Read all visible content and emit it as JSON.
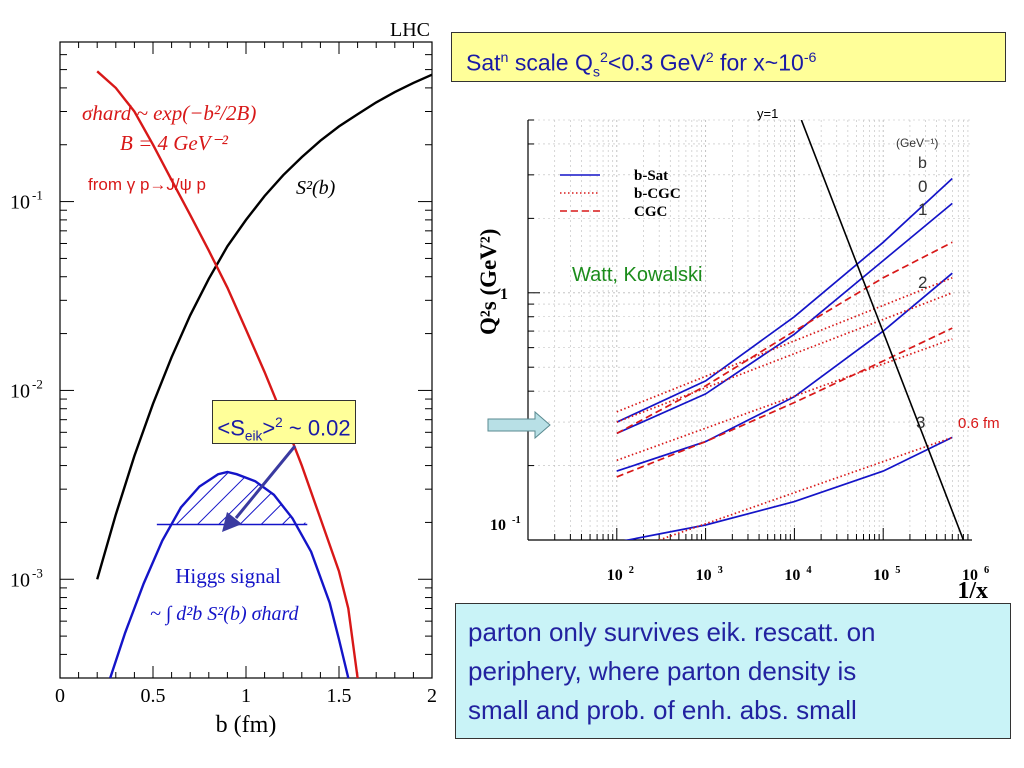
{
  "sat_box": {
    "pre": "Sat",
    "sup1": "n",
    "mid": " scale Q",
    "sub1": "s",
    "sup2": "2",
    "mid2": "<0.3 GeV",
    "sup3": "2",
    "mid3": " for x~10",
    "sup4": "-6"
  },
  "seik_box": {
    "pre": "<S",
    "sub": "eik",
    "mid": ">",
    "sup": "2",
    "post": " ~ 0.02"
  },
  "summary_box": {
    "line1": "parton only survives eik. rescatt. on",
    "line2": "periphery, where parton density is",
    "line3": "small and prob. of enh. abs. small"
  },
  "chart_data": [
    {
      "type": "line",
      "corner_label": "LHC",
      "xlabel": "b (fm)",
      "xlim": [
        0,
        2
      ],
      "ylim": [
        0.0003,
        0.7
      ],
      "log_y": true,
      "x_ticks": [
        "0",
        "0.5",
        "1",
        "1.5",
        "2"
      ],
      "y_ticks": [
        {
          "base": "10",
          "exp": "-1"
        },
        {
          "base": "10",
          "exp": "-2"
        },
        {
          "base": "10",
          "exp": "-3"
        }
      ],
      "series": [
        {
          "name": "S²(b)",
          "color": "#000000",
          "x": [
            0.2,
            0.3,
            0.4,
            0.5,
            0.6,
            0.7,
            0.8,
            0.9,
            1.0,
            1.1,
            1.2,
            1.3,
            1.4,
            1.5,
            1.6,
            1.7,
            1.8,
            1.9,
            2.0
          ],
          "y": [
            0.001,
            0.0022,
            0.0045,
            0.0085,
            0.015,
            0.025,
            0.039,
            0.058,
            0.08,
            0.107,
            0.138,
            0.172,
            0.21,
            0.25,
            0.29,
            0.335,
            0.38,
            0.425,
            0.47
          ]
        },
        {
          "name": "σ_hard",
          "color": "#d81818",
          "x": [
            0.2,
            0.3,
            0.4,
            0.5,
            0.6,
            0.7,
            0.8,
            0.9,
            1.0,
            1.1,
            1.2,
            1.3,
            1.4,
            1.5,
            1.55,
            1.6
          ],
          "y": [
            0.49,
            0.4,
            0.3,
            0.2,
            0.13,
            0.085,
            0.055,
            0.035,
            0.021,
            0.0125,
            0.0072,
            0.004,
            0.0021,
            0.0011,
            0.0007,
            0.0003
          ]
        },
        {
          "name": "Higgs signal",
          "color": "#1414c8",
          "x": [
            0.27,
            0.35,
            0.45,
            0.55,
            0.65,
            0.75,
            0.85,
            0.9,
            0.95,
            1.05,
            1.15,
            1.25,
            1.35,
            1.45,
            1.5,
            1.55
          ],
          "y": [
            0.0003,
            0.00052,
            0.00095,
            0.0016,
            0.0024,
            0.0031,
            0.0036,
            0.0037,
            0.0036,
            0.0033,
            0.0028,
            0.0021,
            0.0014,
            0.00075,
            0.00048,
            0.0003
          ]
        }
      ],
      "labels": {
        "sigma_formula": "σhard ~ exp(−b²/2B)",
        "b_value": "B = 4 GeV⁻²",
        "from_process": "from γ p→J/ψ p",
        "s2_label": "S²(b)",
        "higgs_title": "Higgs signal",
        "higgs_formula": "~ ∫ d²b S²(b) σhard"
      }
    },
    {
      "type": "line",
      "ylabel": "Q²s (GeV²)",
      "xlabel": "1/x",
      "log_x": true,
      "log_y": true,
      "xlim": [
        10,
        1000000
      ],
      "ylim": [
        0.1,
        5
      ],
      "x_ticks": [
        {
          "base": "10",
          "exp": "2"
        },
        {
          "base": "10",
          "exp": "3"
        },
        {
          "base": "10",
          "exp": "4"
        },
        {
          "base": "10",
          "exp": "5"
        },
        {
          "base": "10",
          "exp": "6"
        }
      ],
      "y_ticks": [
        {
          "base": "10",
          "exp": "-1"
        },
        {
          "base": "1",
          "exp": ""
        }
      ],
      "legend": [
        {
          "name": "b-Sat",
          "style": "solid",
          "color": "#1414c8"
        },
        {
          "name": "b-CGC",
          "style": "dotted",
          "color": "#d81818"
        },
        {
          "name": "CGC",
          "style": "dashed",
          "color": "#d81818"
        }
      ],
      "annotation": "Watt, Kowalski",
      "b_header_unit": "(GeV⁻¹)",
      "b_header": "b",
      "b_labels": [
        "0",
        "1",
        "2",
        "3"
      ],
      "y1_label": "y=1",
      "fm_label": "0.6 fm",
      "series": [
        {
          "name": "b-Sat b=0",
          "style": "solid",
          "color": "#1414c8",
          "x": [
            100,
            1000,
            10000,
            100000,
            600000
          ],
          "y": [
            0.3,
            0.44,
            0.8,
            1.6,
            2.9
          ]
        },
        {
          "name": "b-Sat b=1",
          "style": "solid",
          "color": "#1414c8",
          "x": [
            100,
            1000,
            10000,
            100000,
            600000
          ],
          "y": [
            0.27,
            0.39,
            0.68,
            1.35,
            2.3
          ]
        },
        {
          "name": "b-Sat b=2",
          "style": "solid",
          "color": "#1414c8",
          "x": [
            100,
            1000,
            10000,
            100000,
            600000
          ],
          "y": [
            0.19,
            0.25,
            0.38,
            0.7,
            1.2
          ]
        },
        {
          "name": "b-Sat b=3",
          "style": "solid",
          "color": "#1414c8",
          "x": [
            100,
            1000,
            10000,
            100000,
            600000
          ],
          "y": [
            0.098,
            0.115,
            0.143,
            0.19,
            0.26
          ]
        },
        {
          "name": "b-CGC b=0",
          "style": "dotted",
          "color": "#d81818",
          "x": [
            100,
            600000
          ],
          "y": [
            0.33,
            1.15
          ]
        },
        {
          "name": "b-CGC b=1",
          "style": "dotted",
          "color": "#d81818",
          "x": [
            100,
            600000
          ],
          "y": [
            0.3,
            1.0
          ]
        },
        {
          "name": "b-CGC b=2",
          "style": "dotted",
          "color": "#d81818",
          "x": [
            100,
            600000
          ],
          "y": [
            0.21,
            0.65
          ]
        },
        {
          "name": "b-CGC b=3",
          "style": "dotted",
          "color": "#d81818",
          "x": [
            300,
            600000
          ],
          "y": [
            0.1,
            0.26
          ]
        },
        {
          "name": "CGC upper",
          "style": "dashed",
          "color": "#d81818",
          "x": [
            100,
            1000,
            10000,
            100000,
            600000
          ],
          "y": [
            0.27,
            0.42,
            0.7,
            1.15,
            1.6
          ]
        },
        {
          "name": "CGC lower",
          "style": "dashed",
          "color": "#d81818",
          "x": [
            100,
            1000,
            10000,
            100000,
            600000
          ],
          "y": [
            0.18,
            0.25,
            0.36,
            0.53,
            0.72
          ]
        },
        {
          "name": "y=1",
          "style": "solid",
          "color": "#000000",
          "x": [
            12000,
            800000
          ],
          "y": [
            5,
            0.1
          ]
        }
      ]
    }
  ]
}
